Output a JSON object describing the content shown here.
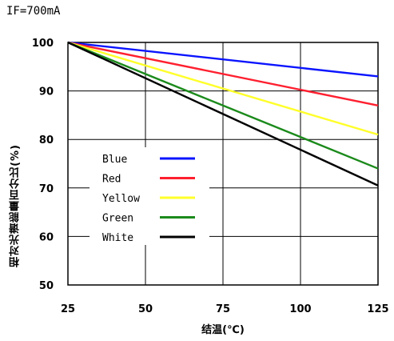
{
  "condition_label": "IF=700mA",
  "chart_data": {
    "type": "line",
    "xlabel": "结温(℃)",
    "ylabel": "相对光谱能量百分比(%)",
    "xlim": [
      25,
      125
    ],
    "ylim": [
      50,
      100
    ],
    "xticks": [
      25,
      50,
      75,
      100,
      125
    ],
    "yticks": [
      50,
      60,
      70,
      80,
      90,
      100
    ],
    "grid": true,
    "legend_position": "left",
    "series": [
      {
        "name": "Blue",
        "color": "#0a14ff",
        "x": [
          25,
          125
        ],
        "y": [
          100,
          93
        ]
      },
      {
        "name": "Red",
        "color": "#ff1f2f",
        "x": [
          25,
          125
        ],
        "y": [
          100,
          87
        ]
      },
      {
        "name": "Yellow",
        "color": "#ffff2a",
        "x": [
          25,
          125
        ],
        "y": [
          100,
          81
        ]
      },
      {
        "name": "Green",
        "color": "#1b8a1b",
        "x": [
          25,
          125
        ],
        "y": [
          100,
          74
        ]
      },
      {
        "name": "White",
        "color": "#000000",
        "x": [
          25,
          125
        ],
        "y": [
          100,
          70.5
        ]
      }
    ]
  }
}
